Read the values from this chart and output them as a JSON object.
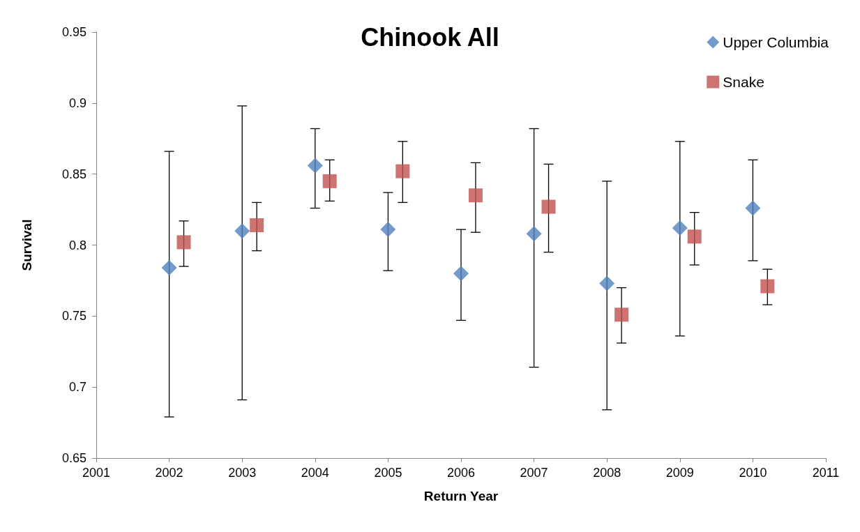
{
  "chart_data": {
    "type": "scatter",
    "title": "Chinook All",
    "xlabel": "Return Year",
    "ylabel": "Survival",
    "xlim": [
      2001,
      2011
    ],
    "xticks": [
      2001,
      2002,
      2003,
      2004,
      2005,
      2006,
      2007,
      2008,
      2009,
      2010,
      2011
    ],
    "ylim": [
      0.65,
      0.95
    ],
    "yticks": [
      0.65,
      0.7,
      0.75,
      0.8,
      0.85,
      0.9,
      0.95
    ],
    "grid": false,
    "legend": "top right",
    "series": [
      {
        "name": "Upper Columbia",
        "color": "#4f81bd",
        "marker": "diamond",
        "x": [
          2002,
          2003,
          2004,
          2005,
          2006,
          2007,
          2008,
          2009,
          2010
        ],
        "values": [
          0.784,
          0.81,
          0.856,
          0.811,
          0.78,
          0.808,
          0.773,
          0.812,
          0.826
        ],
        "errors": [
          [
            0.679,
            0.866
          ],
          [
            0.691,
            0.898
          ],
          [
            0.826,
            0.882
          ],
          [
            0.782,
            0.837
          ],
          [
            0.747,
            0.811
          ],
          [
            0.714,
            0.882
          ],
          [
            0.684,
            0.845
          ],
          [
            0.736,
            0.873
          ],
          [
            0.789,
            0.86
          ]
        ]
      },
      {
        "name": "Snake",
        "color": "#c0504d",
        "marker": "square",
        "x": [
          2002.2,
          2003.2,
          2004.2,
          2005.2,
          2006.2,
          2007.2,
          2008.2,
          2009.2,
          2010.2
        ],
        "values": [
          0.802,
          0.814,
          0.845,
          0.852,
          0.835,
          0.827,
          0.751,
          0.806,
          0.771
        ],
        "errors": [
          [
            0.785,
            0.817
          ],
          [
            0.796,
            0.83
          ],
          [
            0.831,
            0.86
          ],
          [
            0.83,
            0.873
          ],
          [
            0.809,
            0.858
          ],
          [
            0.795,
            0.857
          ],
          [
            0.731,
            0.77
          ],
          [
            0.786,
            0.823
          ],
          [
            0.758,
            0.783
          ]
        ]
      }
    ]
  }
}
